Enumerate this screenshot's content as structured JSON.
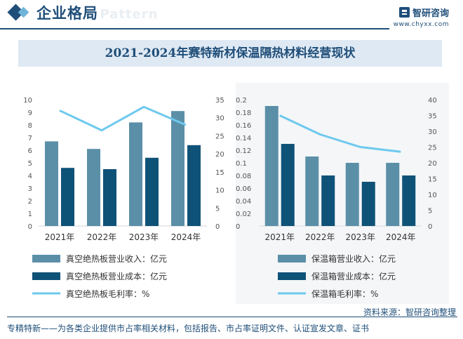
{
  "header": {
    "section_title": "企业格局",
    "watermark_text": "e Pattern",
    "brand_name": "智研咨询",
    "brand_url": "www.chyxx.com"
  },
  "title": "2021-2024年赛特新材保温隔热材料经营现状",
  "chart_data": [
    {
      "type": "bar",
      "categories": [
        "2021年",
        "2022年",
        "2023年",
        "2024年"
      ],
      "y_left": {
        "ylim": [
          0,
          10
        ],
        "ticks": [
          0,
          1,
          2,
          3,
          4,
          5,
          6,
          7,
          8,
          9,
          10
        ]
      },
      "y_right": {
        "ylim": [
          0,
          35
        ],
        "ticks": [
          0,
          5,
          10,
          15,
          20,
          25,
          30,
          35
        ]
      },
      "series": [
        {
          "name": "真空绝热板营业收入：亿元",
          "kind": "bar",
          "axis": "left",
          "values": [
            6.7,
            6.1,
            8.2,
            9.1
          ],
          "color": "#5b8fa8"
        },
        {
          "name": "真空绝热板营业成本：亿元",
          "kind": "bar",
          "axis": "left",
          "values": [
            4.6,
            4.5,
            5.4,
            6.4
          ],
          "color": "#0f5278"
        },
        {
          "name": "真空绝热板毛利率：%",
          "kind": "line",
          "axis": "right",
          "values": [
            32,
            26.5,
            33,
            28
          ],
          "color": "#6ec9ee"
        }
      ]
    },
    {
      "type": "bar",
      "categories": [
        "2021年",
        "2022年",
        "2023年",
        "2024年"
      ],
      "y_left": {
        "ylim": [
          0,
          0.2
        ],
        "ticks": [
          "0",
          "0.02",
          "0.04",
          "0.06",
          "0.08",
          "0.1",
          "0.12",
          "0.14",
          "0.16",
          "0.18",
          "0.2"
        ]
      },
      "y_right": {
        "ylim": [
          0,
          40
        ],
        "ticks": [
          0,
          5,
          10,
          15,
          20,
          25,
          30,
          35,
          40
        ]
      },
      "series": [
        {
          "name": "保温箱营业收入：亿元",
          "kind": "bar",
          "axis": "left",
          "values": [
            0.19,
            0.11,
            0.1,
            0.1
          ],
          "color": "#5b8fa8"
        },
        {
          "name": "保温箱营业成本：亿元",
          "kind": "bar",
          "axis": "left",
          "values": [
            0.13,
            0.08,
            0.07,
            0.08
          ],
          "color": "#0f5278"
        },
        {
          "name": "保温箱毛利率：%",
          "kind": "line",
          "axis": "right",
          "values": [
            35,
            29,
            25,
            23.5
          ],
          "color": "#6ec9ee"
        }
      ]
    }
  ],
  "source": "资料来源：智研咨询整理",
  "footer": "专精特新——为各类企业提供市占率相关材料，包括报告、市占率证明文件、认证宣发文章、证书"
}
